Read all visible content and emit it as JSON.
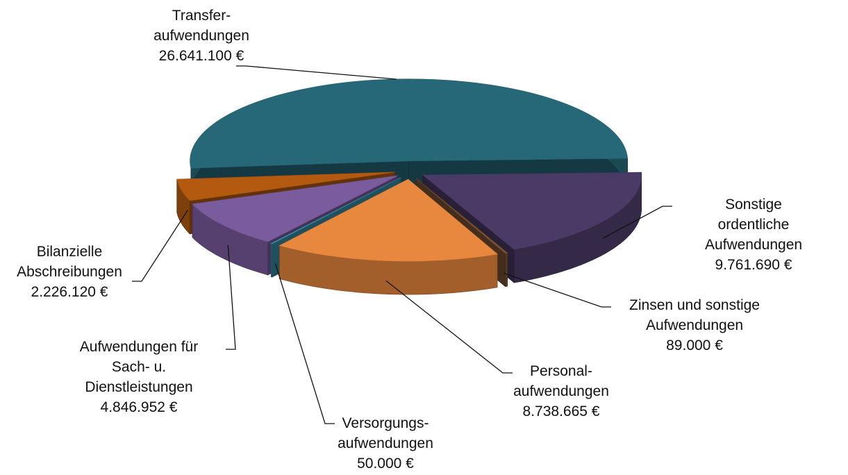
{
  "chart_data": {
    "type": "pie3d",
    "categories": [
      "Transfer-\naufwendungen",
      "Sonstige ordentliche\nAufwendungen",
      "Zinsen und sonstige\nAufwendungen",
      "Personal-\naufwendungen",
      "Versorgungs-\naufwendungen",
      "Aufwendungen für\nSach- u.\nDienstleistungen",
      "Bilanzielle\nAbschreibungen"
    ],
    "values": [
      26641100,
      9761690,
      89000,
      8738665,
      50000,
      4846952,
      2226120
    ],
    "value_labels": [
      "26.641.100 €",
      "9.761.690 €",
      "89.000 €",
      "8.738.665 €",
      "50.000 €",
      "4.846.952 €",
      "2.226.120 €"
    ],
    "colors": [
      "#266878",
      "#4a3a66",
      "#7a5232",
      "#e8883e",
      "#3a90aa",
      "#7a5c9e",
      "#b35a10"
    ]
  }
}
